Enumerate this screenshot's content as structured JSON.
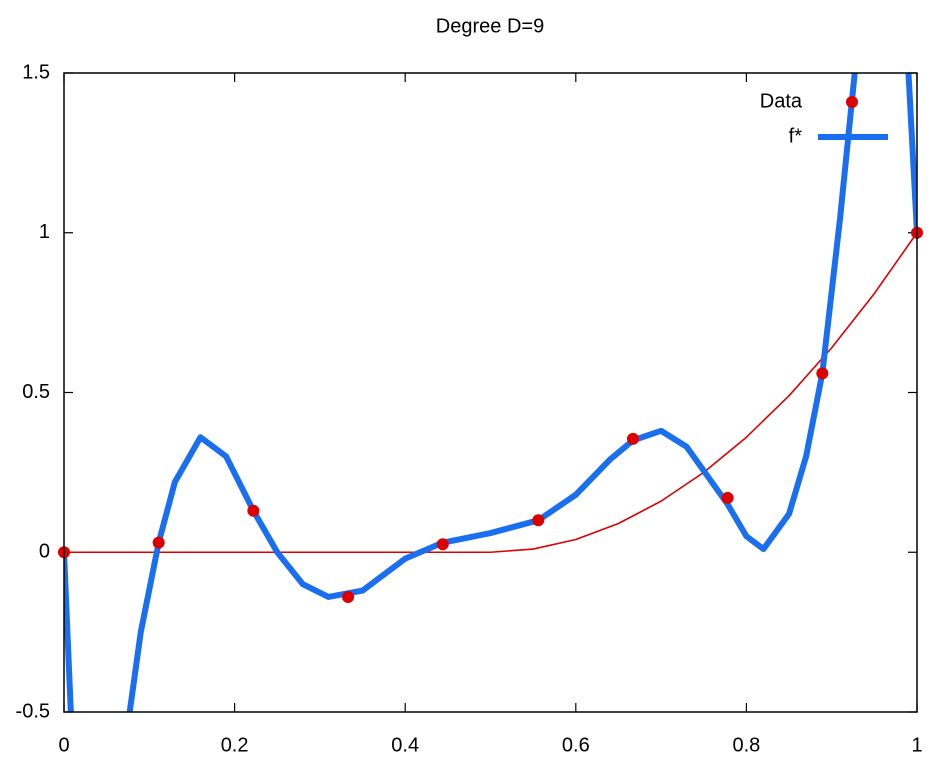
{
  "chart_data": {
    "type": "line",
    "title": "Degree D=9",
    "xlim": [
      0,
      1
    ],
    "xticks": [
      0,
      0.2,
      0.4,
      0.6,
      0.8,
      1
    ],
    "ylim": [
      -0.5,
      1.5
    ],
    "yticks": [
      -0.5,
      0,
      0.5,
      1,
      1.5
    ],
    "grid": false,
    "legend": "top-right",
    "series": [
      {
        "name": "Data",
        "color": "#dd0000",
        "mode": "points",
        "x": [
          0,
          0.111,
          0.222,
          0.333,
          0.444,
          0.556,
          0.667,
          0.778,
          0.889,
          1
        ],
        "values": [
          0.0,
          0.03,
          0.13,
          -0.14,
          0.025,
          0.1,
          0.355,
          0.17,
          0.56,
          1.0
        ]
      },
      {
        "name": "f*",
        "color": "#1a6ff0",
        "mode": "line",
        "x": [
          0,
          0.008,
          0.04,
          0.077,
          0.09,
          0.111,
          0.13,
          0.16,
          0.19,
          0.222,
          0.25,
          0.28,
          0.31,
          0.35,
          0.4,
          0.444,
          0.5,
          0.556,
          0.6,
          0.64,
          0.667,
          0.7,
          0.73,
          0.778,
          0.8,
          0.82,
          0.85,
          0.87,
          0.889,
          0.91,
          0.927,
          0.96,
          0.99,
          1
        ],
        "values": [
          0,
          -0.5,
          null,
          -0.5,
          -0.25,
          0.03,
          0.22,
          0.36,
          0.3,
          0.13,
          0.0,
          -0.1,
          -0.14,
          -0.12,
          -0.02,
          0.03,
          0.06,
          0.1,
          0.18,
          0.29,
          0.35,
          0.38,
          0.33,
          0.15,
          0.05,
          0.01,
          0.12,
          0.3,
          0.56,
          1.05,
          1.5,
          null,
          1.5,
          1.0
        ]
      },
      {
        "color": "#dd0000",
        "mode": "line",
        "x": [
          0,
          0.5,
          0.55,
          0.6,
          0.65,
          0.7,
          0.75,
          0.8,
          0.85,
          0.9,
          0.95,
          1
        ],
        "values": [
          0,
          0,
          0.01,
          0.04,
          0.09,
          0.16,
          0.25,
          0.36,
          0.49,
          0.64,
          0.81,
          1
        ]
      }
    ]
  }
}
